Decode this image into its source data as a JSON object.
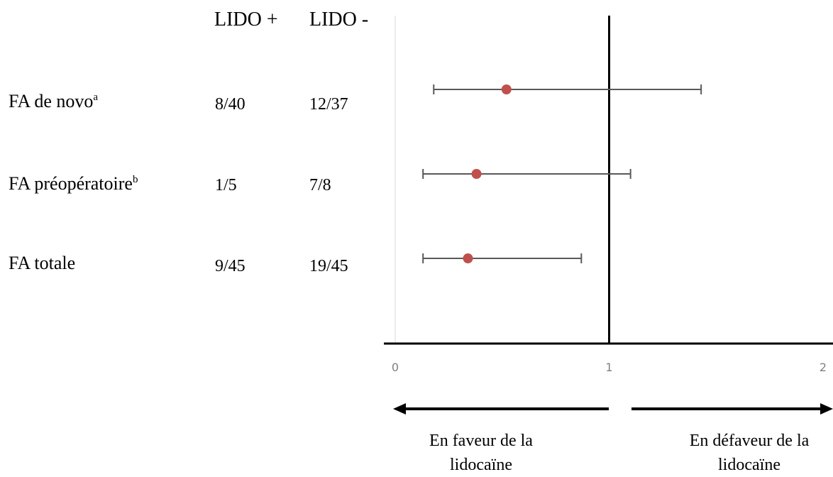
{
  "chart_data": {
    "type": "forest",
    "columns": [
      "LIDO +",
      "LIDO -"
    ],
    "rows": [
      {
        "label": "FA de novo",
        "sup": "a",
        "lido_plus": "8/40",
        "lido_minus": "12/37",
        "estimate": 0.52,
        "ci": [
          0.18,
          1.43
        ]
      },
      {
        "label": "FA préopératoire",
        "sup": "b",
        "lido_plus": "1/5",
        "lido_minus": "7/8",
        "estimate": 0.38,
        "ci": [
          0.13,
          1.1
        ]
      },
      {
        "label": "FA totale",
        "sup": "",
        "lido_plus": "9/45",
        "lido_minus": "19/45",
        "estimate": 0.34,
        "ci": [
          0.13,
          0.87
        ]
      }
    ],
    "xlim": [
      0,
      2
    ],
    "xticks": [
      "0",
      "1",
      "2"
    ],
    "reference_line": 1,
    "arrow_left_label": "En faveur de la lidocaïne",
    "arrow_right_label": "En défaveur de la lidocaïne",
    "point_color": "#c0504d",
    "whisker_color": "#595959"
  }
}
